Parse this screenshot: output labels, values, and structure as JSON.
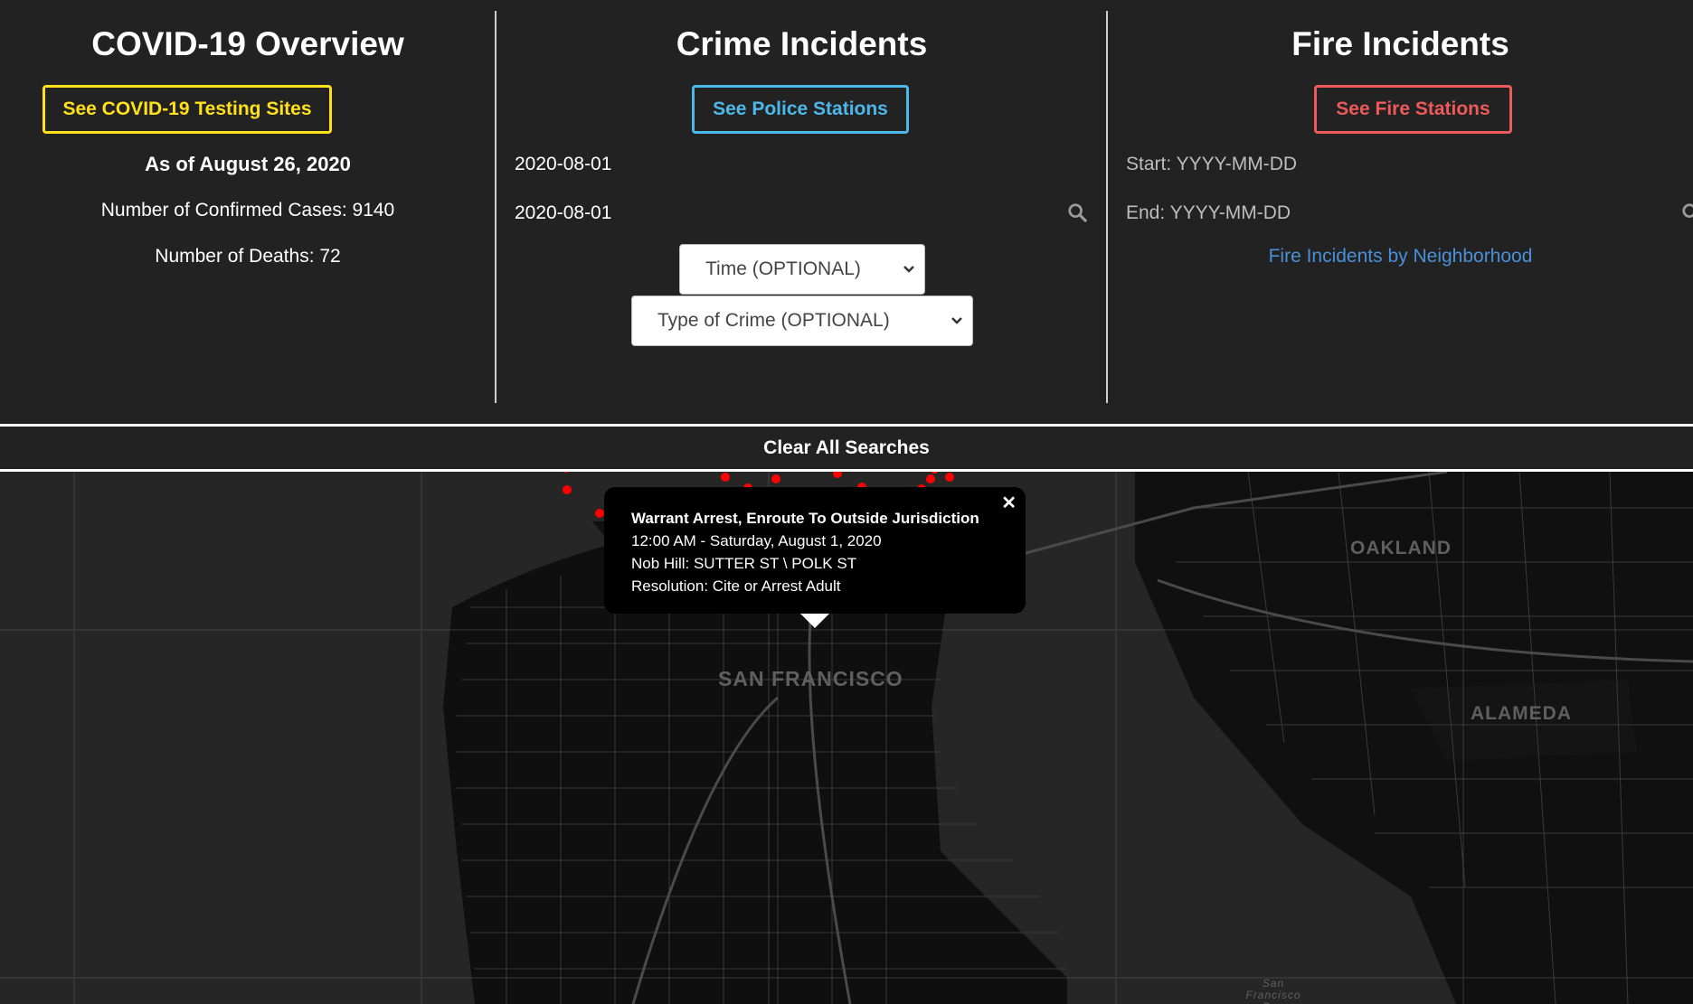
{
  "covid": {
    "title": "COVID-19 Overview",
    "testing_button": "See COVID-19 Testing Sites",
    "as_of": "As of August 26, 2020",
    "cases": "Number of Confirmed Cases: 9140",
    "deaths": "Number of Deaths: 72",
    "accent": "#ffe01a"
  },
  "crime": {
    "title": "Crime Incidents",
    "stations_button": "See Police Stations",
    "start_value": "2020-08-01",
    "end_value": "2020-08-01",
    "time_select": "Time (OPTIONAL)",
    "type_select": "Type of Crime (OPTIONAL)",
    "accent": "#4cb8ea"
  },
  "fire": {
    "title": "Fire Incidents",
    "stations_button": "See Fire Stations",
    "start_placeholder": "Start: YYYY-MM-DD",
    "end_placeholder": "End: YYYY-MM-DD",
    "neighborhood_link": "Fire Incidents by Neighborhood",
    "accent": "#ec5a5a"
  },
  "clear_button": "Clear All Searches",
  "map": {
    "labels": {
      "oakland": "OAKLAND",
      "san_francisco": "SAN FRANCISCO",
      "alameda": "ALAMEDA",
      "bay": "San Francisco Bay"
    },
    "popup": {
      "title": "Warrant Arrest, Enroute To Outside Jurisdiction",
      "datetime": "12:00 AM - Saturday, August 1, 2020",
      "location": "Nob Hill: SUTTER ST \\ POLK ST",
      "resolution": "Resolution: Cite or Arrest Adult"
    },
    "marker_colors": {
      "incident": "#ff0000",
      "highlight": "#ffff00"
    }
  }
}
